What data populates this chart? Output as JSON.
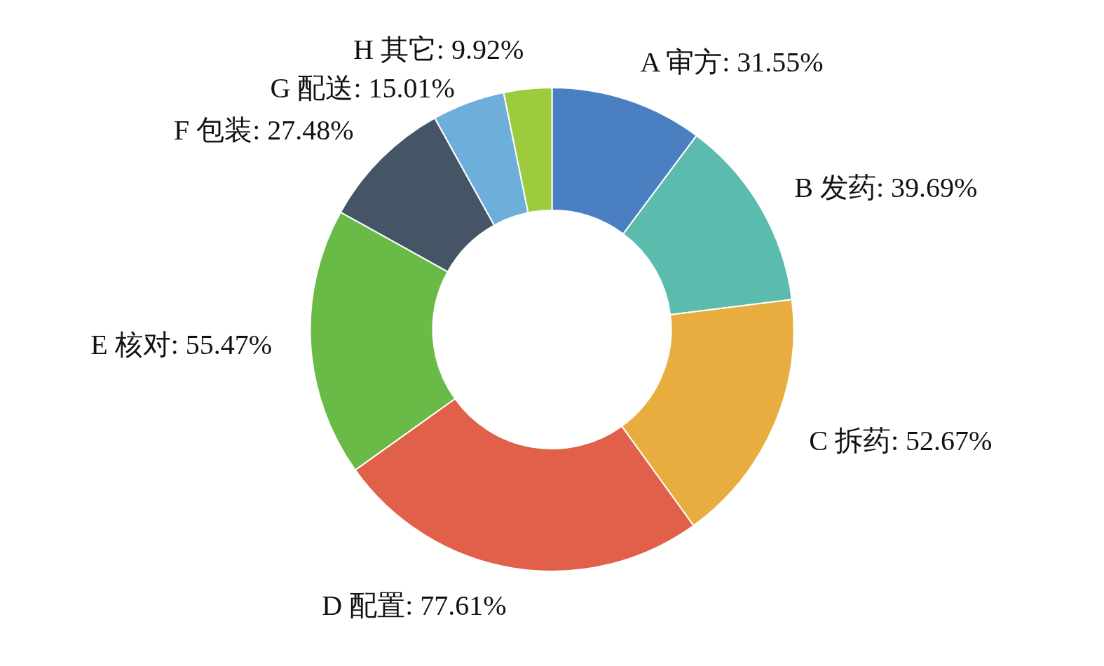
{
  "chart_data": {
    "type": "donut",
    "categories": [
      "A 审方",
      "B 发药",
      "C 拆药",
      "D 配置",
      "E 核对",
      "F 包装",
      "G 配送",
      "H 其它"
    ],
    "values": [
      31.55,
      39.69,
      52.67,
      77.61,
      55.47,
      27.48,
      15.01,
      9.92
    ],
    "value_labels": [
      "31.55%",
      "39.69%",
      "52.67%",
      "77.61%",
      "55.47%",
      "27.48%",
      "15.01%",
      "9.92%"
    ],
    "colors": [
      "#4a7fc1",
      "#5bbcad",
      "#e8ad3e",
      "#e0604a",
      "#6aba47",
      "#455565",
      "#6daedb",
      "#9ccb3e"
    ]
  }
}
